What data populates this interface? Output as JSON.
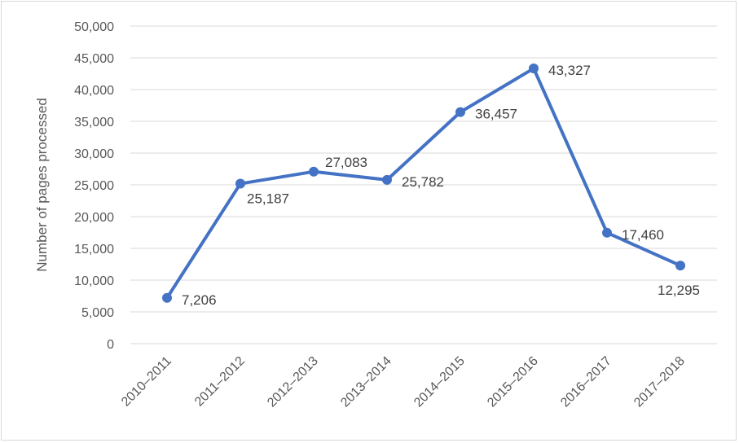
{
  "chart_data": {
    "type": "line",
    "title": "",
    "xlabel": "",
    "ylabel": "Number of pages processed",
    "categories": [
      "2010–2011",
      "2011–2012",
      "2012–2013",
      "2013–2014",
      "2014–2015",
      "2015–2016",
      "2016–2017",
      "2017–2018"
    ],
    "series": [
      {
        "values": [
          7206,
          25187,
          27083,
          25782,
          36457,
          43327,
          17460,
          12295
        ],
        "labels": [
          "7,206",
          "25,187",
          "27,083",
          "25,782",
          "36,457",
          "43,327",
          "17,460",
          "12,295"
        ],
        "label_position": [
          "right",
          "below-right",
          "above-right",
          "right",
          "right",
          "right",
          "right",
          "below"
        ]
      }
    ],
    "ylim": [
      0,
      50000
    ],
    "y_ticks": [
      0,
      5000,
      10000,
      15000,
      20000,
      25000,
      30000,
      35000,
      40000,
      45000,
      50000
    ],
    "y_tick_labels": [
      "0",
      "5,000",
      "10,000",
      "15,000",
      "20,000",
      "25,000",
      "30,000",
      "35,000",
      "40,000",
      "45,000",
      "50,000"
    ],
    "grid": true,
    "legend": "none",
    "colors": {
      "line": "#4472c4",
      "grid": "#d9d9d9",
      "text": "#595959"
    }
  }
}
